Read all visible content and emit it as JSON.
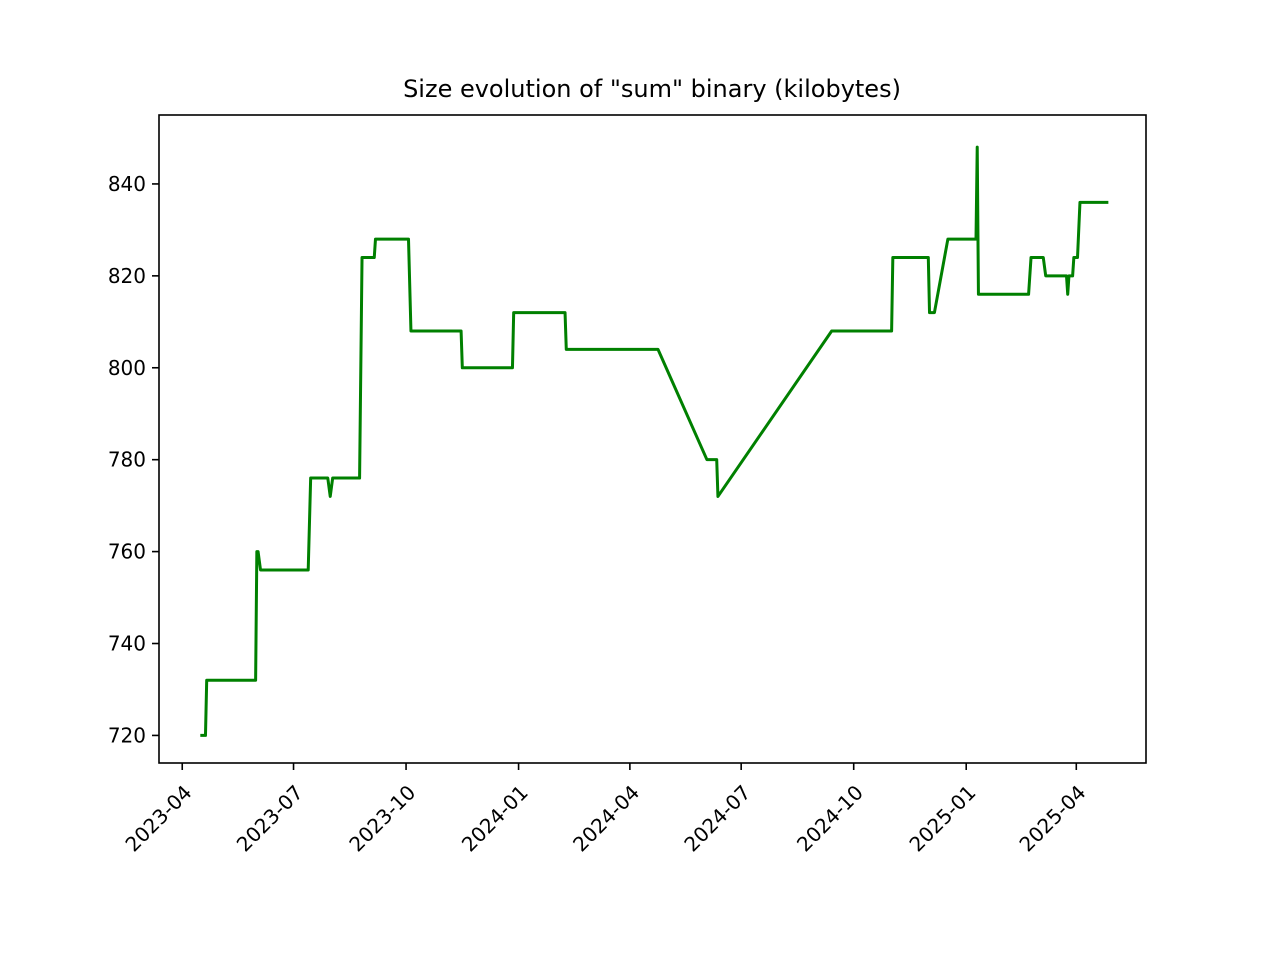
{
  "chart_data": {
    "type": "line",
    "title": "Size evolution of \"sum\" binary (kilobytes)",
    "xlabel": "",
    "ylabel": "",
    "x_type": "date",
    "xlim": [
      "2023-03-13",
      "2025-05-28"
    ],
    "ylim": [
      714,
      855
    ],
    "x_ticks": [
      "2023-04",
      "2023-07",
      "2023-10",
      "2024-01",
      "2024-04",
      "2024-07",
      "2024-10",
      "2025-01",
      "2025-04"
    ],
    "x_tick_dates": [
      "2023-04-01",
      "2023-07-01",
      "2023-10-01",
      "2024-01-01",
      "2024-04-01",
      "2024-07-01",
      "2024-10-01",
      "2025-01-01",
      "2025-04-01"
    ],
    "y_ticks": [
      720,
      740,
      760,
      780,
      800,
      820,
      840
    ],
    "grid": false,
    "series": [
      {
        "name": "sum",
        "color": "#008000",
        "points": [
          [
            "2023-04-17",
            720
          ],
          [
            "2023-04-20",
            720
          ],
          [
            "2023-04-21",
            732
          ],
          [
            "2023-05-31",
            732
          ],
          [
            "2023-06-01",
            760
          ],
          [
            "2023-06-02",
            760
          ],
          [
            "2023-06-04",
            756
          ],
          [
            "2023-07-13",
            756
          ],
          [
            "2023-07-15",
            776
          ],
          [
            "2023-07-29",
            776
          ],
          [
            "2023-07-31",
            772
          ],
          [
            "2023-08-02",
            776
          ],
          [
            "2023-08-24",
            776
          ],
          [
            "2023-08-26",
            824
          ],
          [
            "2023-09-05",
            824
          ],
          [
            "2023-09-06",
            828
          ],
          [
            "2023-10-03",
            828
          ],
          [
            "2023-10-05",
            808
          ],
          [
            "2023-11-15",
            808
          ],
          [
            "2023-11-16",
            800
          ],
          [
            "2023-12-27",
            800
          ],
          [
            "2023-12-28",
            812
          ],
          [
            "2024-02-08",
            812
          ],
          [
            "2024-02-09",
            804
          ],
          [
            "2024-04-24",
            804
          ],
          [
            "2024-06-03",
            780
          ],
          [
            "2024-06-11",
            780
          ],
          [
            "2024-06-12",
            772
          ],
          [
            "2024-09-13",
            808
          ],
          [
            "2024-11-01",
            808
          ],
          [
            "2024-11-02",
            824
          ],
          [
            "2024-12-01",
            824
          ],
          [
            "2024-12-02",
            812
          ],
          [
            "2024-12-06",
            812
          ],
          [
            "2024-12-17",
            828
          ],
          [
            "2025-01-09",
            828
          ],
          [
            "2025-01-10",
            848
          ],
          [
            "2025-01-11",
            816
          ],
          [
            "2025-02-21",
            816
          ],
          [
            "2025-02-23",
            824
          ],
          [
            "2025-03-05",
            824
          ],
          [
            "2025-03-07",
            820
          ],
          [
            "2025-03-24",
            820
          ],
          [
            "2025-03-25",
            816
          ],
          [
            "2025-03-26",
            820
          ],
          [
            "2025-03-29",
            820
          ],
          [
            "2025-03-30",
            824
          ],
          [
            "2025-04-02",
            824
          ],
          [
            "2025-04-04",
            836
          ],
          [
            "2025-04-26",
            836
          ]
        ]
      }
    ]
  }
}
